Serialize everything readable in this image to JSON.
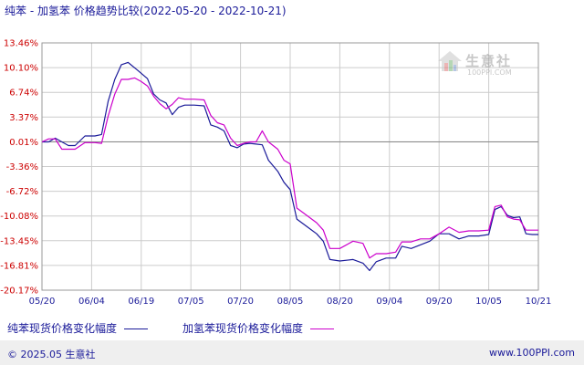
{
  "title": "纯苯 - 加氢苯 价格趋势比较(2022-05-20 - 2022-10-21)",
  "colors": {
    "series1": "#1a1a99",
    "series2": "#cc00cc",
    "tick": "#cc0000",
    "grid": "#cccccc",
    "zero": "#888888"
  },
  "watermark": {
    "cn": "生意社",
    "en": "100PPI.COM",
    "icon": "house-logo-icon"
  },
  "footer": {
    "left": "© 2025.05 生意社",
    "right": "www.100PPI.com"
  },
  "chart_data": {
    "type": "line",
    "title": "纯苯 - 加氢苯 价格趋势比较(2022-05-20 - 2022-10-21)",
    "x_tick_labels": [
      "05/20",
      "06/04",
      "06/19",
      "07/05",
      "07/20",
      "08/05",
      "08/20",
      "09/04",
      "09/20",
      "10/05",
      "10/21"
    ],
    "y_tick_labels": [
      "13.46%",
      "10.10%",
      "6.74%",
      "3.37%",
      "0.01%",
      "-3.36%",
      "-6.72%",
      "-10.08%",
      "-13.45%",
      "-16.81%",
      "-20.17%"
    ],
    "ylim": [
      -20.17,
      13.46
    ],
    "grid": true,
    "legend_position": "bottom",
    "series": [
      {
        "name": "纯苯现货价格变化幅度",
        "color": "#1a1a99",
        "points": [
          [
            "05/20",
            0.0
          ],
          [
            "05/22",
            0.0
          ],
          [
            "05/24",
            0.5
          ],
          [
            "05/26",
            0.0
          ],
          [
            "05/28",
            -0.5
          ],
          [
            "05/30",
            -0.5
          ],
          [
            "06/02",
            0.8
          ],
          [
            "06/05",
            0.8
          ],
          [
            "06/07",
            1.0
          ],
          [
            "06/09",
            5.5
          ],
          [
            "06/11",
            8.5
          ],
          [
            "06/13",
            10.5
          ],
          [
            "06/15",
            10.8
          ],
          [
            "06/18",
            9.7
          ],
          [
            "06/21",
            8.6
          ],
          [
            "06/23",
            6.5
          ],
          [
            "06/25",
            5.7
          ],
          [
            "06/27",
            5.3
          ],
          [
            "06/29",
            3.7
          ],
          [
            "07/01",
            4.7
          ],
          [
            "07/03",
            5.0
          ],
          [
            "07/06",
            5.0
          ],
          [
            "07/09",
            4.9
          ],
          [
            "07/11",
            2.3
          ],
          [
            "07/13",
            2.0
          ],
          [
            "07/15",
            1.5
          ],
          [
            "07/17",
            -0.5
          ],
          [
            "07/19",
            -0.8
          ],
          [
            "07/21",
            -0.3
          ],
          [
            "07/23",
            -0.2
          ],
          [
            "07/25",
            -0.3
          ],
          [
            "07/27",
            -0.4
          ],
          [
            "07/29",
            -2.5
          ],
          [
            "08/01",
            -4.0
          ],
          [
            "08/03",
            -5.5
          ],
          [
            "08/05",
            -6.5
          ],
          [
            "08/07",
            -10.5
          ],
          [
            "08/10",
            -11.5
          ],
          [
            "08/13",
            -12.5
          ],
          [
            "08/15",
            -13.5
          ],
          [
            "08/17",
            -16.0
          ],
          [
            "08/20",
            -16.2
          ],
          [
            "08/24",
            -16.0
          ],
          [
            "08/27",
            -16.5
          ],
          [
            "08/29",
            -17.5
          ],
          [
            "08/31",
            -16.3
          ],
          [
            "09/03",
            -15.8
          ],
          [
            "09/06",
            -15.8
          ],
          [
            "09/08",
            -14.2
          ],
          [
            "09/11",
            -14.5
          ],
          [
            "09/14",
            -14.0
          ],
          [
            "09/17",
            -13.5
          ],
          [
            "09/20",
            -12.5
          ],
          [
            "09/23",
            -12.5
          ],
          [
            "09/26",
            -13.2
          ],
          [
            "09/29",
            -12.8
          ],
          [
            "10/02",
            -12.8
          ],
          [
            "10/05",
            -12.6
          ],
          [
            "10/07",
            -9.2
          ],
          [
            "10/09",
            -8.8
          ],
          [
            "10/11",
            -10.0
          ],
          [
            "10/13",
            -10.3
          ],
          [
            "10/15",
            -10.2
          ],
          [
            "10/17",
            -12.5
          ],
          [
            "10/19",
            -12.6
          ],
          [
            "10/21",
            -12.6
          ]
        ]
      },
      {
        "name": "加氢苯现货价格变化幅度",
        "color": "#cc00cc",
        "points": [
          [
            "05/20",
            0.0
          ],
          [
            "05/22",
            0.4
          ],
          [
            "05/24",
            0.4
          ],
          [
            "05/26",
            -1.0
          ],
          [
            "05/28",
            -1.0
          ],
          [
            "05/30",
            -1.0
          ],
          [
            "06/02",
            -0.1
          ],
          [
            "06/05",
            -0.1
          ],
          [
            "06/07",
            -0.2
          ],
          [
            "06/09",
            3.5
          ],
          [
            "06/11",
            6.5
          ],
          [
            "06/13",
            8.5
          ],
          [
            "06/15",
            8.5
          ],
          [
            "06/17",
            8.7
          ],
          [
            "06/19",
            8.2
          ],
          [
            "06/21",
            7.6
          ],
          [
            "06/23",
            6.2
          ],
          [
            "06/25",
            5.2
          ],
          [
            "06/27",
            4.5
          ],
          [
            "06/29",
            5.1
          ],
          [
            "07/01",
            6.0
          ],
          [
            "07/03",
            5.8
          ],
          [
            "07/06",
            5.8
          ],
          [
            "07/09",
            5.7
          ],
          [
            "07/11",
            3.6
          ],
          [
            "07/13",
            2.6
          ],
          [
            "07/15",
            2.3
          ],
          [
            "07/17",
            0.5
          ],
          [
            "07/19",
            -0.5
          ],
          [
            "07/21",
            -0.2
          ],
          [
            "07/23",
            0.0
          ],
          [
            "07/25",
            0.0
          ],
          [
            "07/27",
            1.5
          ],
          [
            "07/29",
            0.0
          ],
          [
            "08/01",
            -1.0
          ],
          [
            "08/03",
            -2.5
          ],
          [
            "08/05",
            -3.0
          ],
          [
            "08/07",
            -9.0
          ],
          [
            "08/10",
            -10.0
          ],
          [
            "08/13",
            -11.0
          ],
          [
            "08/15",
            -12.0
          ],
          [
            "08/17",
            -14.5
          ],
          [
            "08/20",
            -14.5
          ],
          [
            "08/24",
            -13.5
          ],
          [
            "08/27",
            -13.8
          ],
          [
            "08/29",
            -15.8
          ],
          [
            "08/31",
            -15.2
          ],
          [
            "09/03",
            -15.2
          ],
          [
            "09/06",
            -15.0
          ],
          [
            "09/08",
            -13.6
          ],
          [
            "09/11",
            -13.6
          ],
          [
            "09/14",
            -13.2
          ],
          [
            "09/17",
            -13.2
          ],
          [
            "09/20",
            -12.5
          ],
          [
            "09/23",
            -11.6
          ],
          [
            "09/26",
            -12.3
          ],
          [
            "09/29",
            -12.1
          ],
          [
            "10/02",
            -12.1
          ],
          [
            "10/05",
            -12.0
          ],
          [
            "10/07",
            -8.8
          ],
          [
            "10/09",
            -8.6
          ],
          [
            "10/11",
            -10.2
          ],
          [
            "10/13",
            -10.5
          ],
          [
            "10/15",
            -10.6
          ],
          [
            "10/17",
            -12.0
          ],
          [
            "10/19",
            -12.0
          ],
          [
            "10/21",
            -12.0
          ]
        ]
      }
    ]
  }
}
